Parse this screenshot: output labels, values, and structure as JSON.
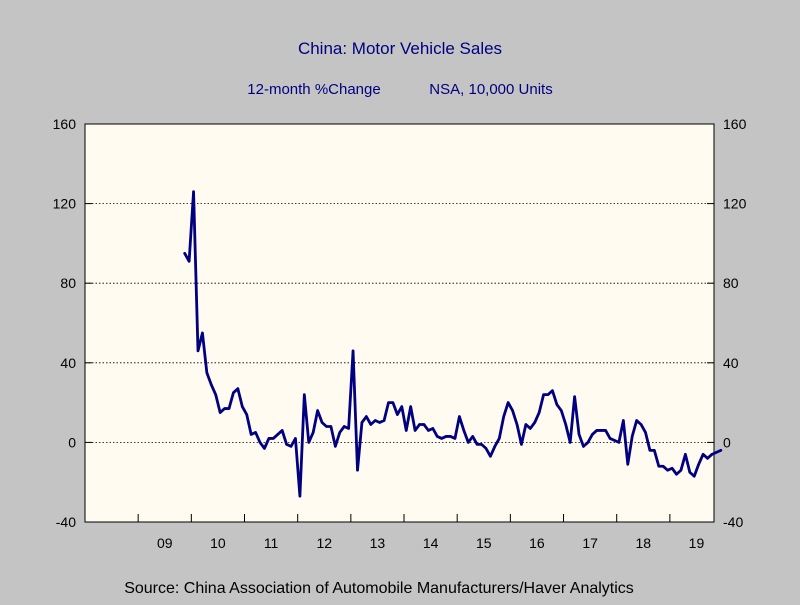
{
  "chart_data": {
    "type": "line",
    "title": "China: Motor Vehicle Sales",
    "subtitle_left": "12-month %Change",
    "subtitle_right": "NSA, 10,000 Units",
    "source": "Source:  China Association of Automobile Manufacturers/Haver Analytics",
    "ylim": [
      -40,
      160
    ],
    "yticks": [
      160,
      120,
      80,
      40,
      0,
      -40
    ],
    "ytick_labels": [
      "160",
      "120",
      "80",
      "40",
      "0",
      "-40"
    ],
    "grid": "horizontal dotted",
    "x_tick_labels": [
      "09",
      "10",
      "11",
      "12",
      "13",
      "14",
      "15",
      "16",
      "17",
      "18",
      "19"
    ],
    "x_tick_years": [
      2009,
      2010,
      2011,
      2012,
      2013,
      2014,
      2015,
      2016,
      2017,
      2018,
      2019
    ],
    "x_start_year": 2008,
    "x_end_year": 2019.83,
    "colors": {
      "background": "#c4c4c4",
      "plot_background": "#fffbf0",
      "line": "#000080",
      "title": "#000080"
    },
    "series": [
      {
        "line_color": "#000080",
        "points": [
          [
            "2009-11",
            95
          ],
          [
            "2009-12",
            91
          ],
          [
            "2010-01",
            126
          ],
          [
            "2010-02",
            46
          ],
          [
            "2010-03",
            55
          ],
          [
            "2010-04",
            35
          ],
          [
            "2010-05",
            29
          ],
          [
            "2010-06",
            24
          ],
          [
            "2010-07",
            15
          ],
          [
            "2010-08",
            17
          ],
          [
            "2010-09",
            17
          ],
          [
            "2010-10",
            25
          ],
          [
            "2010-11",
            27
          ],
          [
            "2010-12",
            18
          ],
          [
            "2011-01",
            14
          ],
          [
            "2011-02",
            4
          ],
          [
            "2011-03",
            5
          ],
          [
            "2011-04",
            0
          ],
          [
            "2011-05",
            -3
          ],
          [
            "2011-06",
            2
          ],
          [
            "2011-07",
            2
          ],
          [
            "2011-08",
            4
          ],
          [
            "2011-09",
            6
          ],
          [
            "2011-10",
            -1
          ],
          [
            "2011-11",
            -2
          ],
          [
            "2011-12",
            2
          ],
          [
            "2012-01",
            -27
          ],
          [
            "2012-02",
            24
          ],
          [
            "2012-03",
            0
          ],
          [
            "2012-04",
            5
          ],
          [
            "2012-05",
            16
          ],
          [
            "2012-06",
            10
          ],
          [
            "2012-07",
            8
          ],
          [
            "2012-08",
            8
          ],
          [
            "2012-09",
            -2
          ],
          [
            "2012-10",
            5
          ],
          [
            "2012-11",
            8
          ],
          [
            "2012-12",
            7
          ],
          [
            "2013-01",
            46
          ],
          [
            "2013-02",
            -14
          ],
          [
            "2013-03",
            10
          ],
          [
            "2013-04",
            13
          ],
          [
            "2013-05",
            9
          ],
          [
            "2013-06",
            11
          ],
          [
            "2013-07",
            10
          ],
          [
            "2013-08",
            11
          ],
          [
            "2013-09",
            20
          ],
          [
            "2013-10",
            20
          ],
          [
            "2013-11",
            14
          ],
          [
            "2013-12",
            18
          ],
          [
            "2014-01",
            6
          ],
          [
            "2014-02",
            18
          ],
          [
            "2014-03",
            6
          ],
          [
            "2014-04",
            9
          ],
          [
            "2014-05",
            9
          ],
          [
            "2014-06",
            6
          ],
          [
            "2014-07",
            7
          ],
          [
            "2014-08",
            3
          ],
          [
            "2014-09",
            2
          ],
          [
            "2014-10",
            3
          ],
          [
            "2014-11",
            3
          ],
          [
            "2014-12",
            2
          ],
          [
            "2015-01",
            13
          ],
          [
            "2015-02",
            6
          ],
          [
            "2015-03",
            0
          ],
          [
            "2015-04",
            3
          ],
          [
            "2015-05",
            -1
          ],
          [
            "2015-06",
            -1
          ],
          [
            "2015-07",
            -3
          ],
          [
            "2015-08",
            -7
          ],
          [
            "2015-09",
            -2
          ],
          [
            "2015-10",
            2
          ],
          [
            "2015-11",
            13
          ],
          [
            "2015-12",
            20
          ],
          [
            "2016-01",
            16
          ],
          [
            "2016-02",
            9
          ],
          [
            "2016-03",
            -1
          ],
          [
            "2016-04",
            9
          ],
          [
            "2016-05",
            7
          ],
          [
            "2016-06",
            10
          ],
          [
            "2016-07",
            15
          ],
          [
            "2016-08",
            24
          ],
          [
            "2016-09",
            24
          ],
          [
            "2016-10",
            26
          ],
          [
            "2016-11",
            19
          ],
          [
            "2016-12",
            16
          ],
          [
            "2017-01",
            9
          ],
          [
            "2017-02",
            0
          ],
          [
            "2017-03",
            23
          ],
          [
            "2017-04",
            4
          ],
          [
            "2017-05",
            -2
          ],
          [
            "2017-06",
            0
          ],
          [
            "2017-07",
            4
          ],
          [
            "2017-08",
            6
          ],
          [
            "2017-09",
            6
          ],
          [
            "2017-10",
            6
          ],
          [
            "2017-11",
            2
          ],
          [
            "2017-12",
            1
          ],
          [
            "2018-01",
            0
          ],
          [
            "2018-02",
            11
          ],
          [
            "2018-03",
            -11
          ],
          [
            "2018-04",
            3
          ],
          [
            "2018-05",
            11
          ],
          [
            "2018-06",
            9
          ],
          [
            "2018-07",
            5
          ],
          [
            "2018-08",
            -4
          ],
          [
            "2018-09",
            -4
          ],
          [
            "2018-10",
            -12
          ],
          [
            "2018-11",
            -12
          ],
          [
            "2018-12",
            -14
          ],
          [
            "2019-01",
            -13
          ],
          [
            "2019-02",
            -16
          ],
          [
            "2019-03",
            -14
          ],
          [
            "2019-04",
            -6
          ],
          [
            "2019-05",
            -15
          ],
          [
            "2019-06",
            -17
          ],
          [
            "2019-07",
            -11
          ],
          [
            "2019-08",
            -6
          ],
          [
            "2019-09",
            -8
          ],
          [
            "2019-10",
            -6
          ],
          [
            "2019-11",
            -5
          ],
          [
            "2019-12",
            -4
          ]
        ]
      }
    ]
  }
}
